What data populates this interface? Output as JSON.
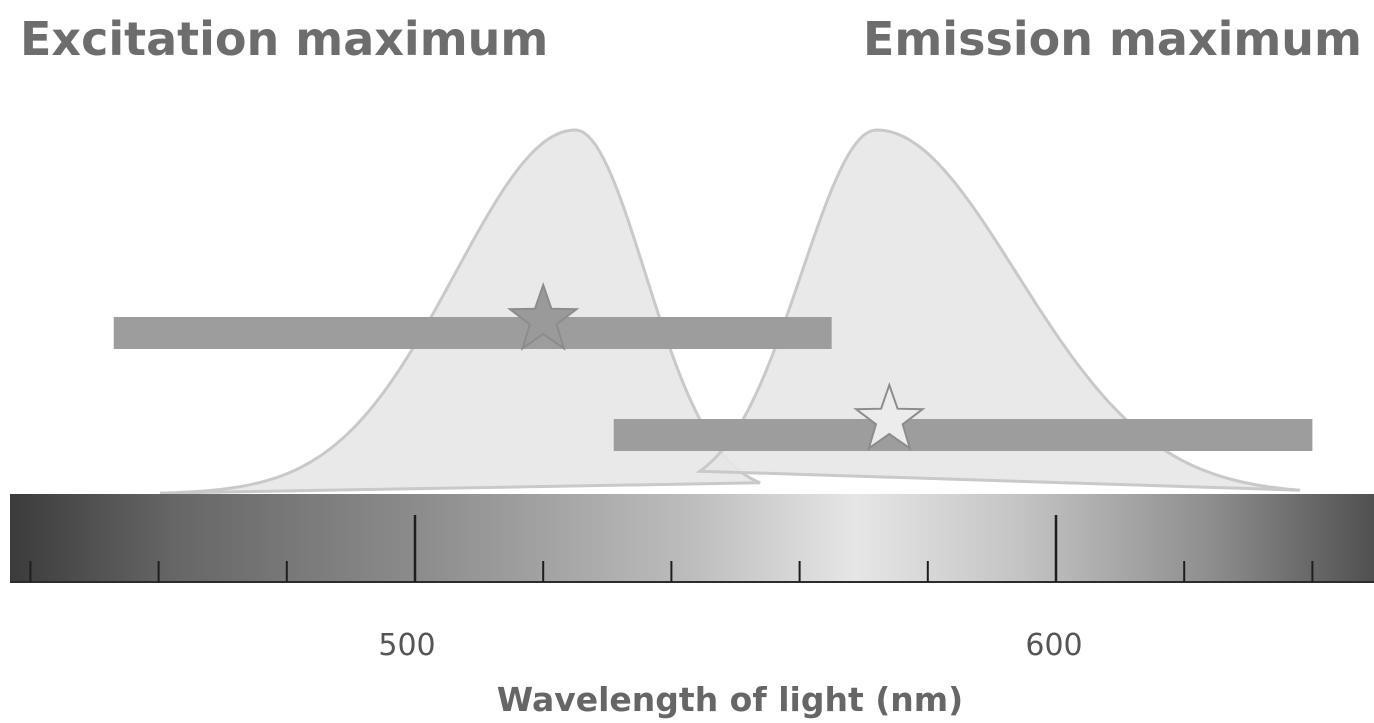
{
  "headings": {
    "excitation": "Excitation maximum",
    "emission": "Emission maximum"
  },
  "axis": {
    "title": "Wavelength of light (nm)",
    "range_nm": [
      437,
      651
    ],
    "major_ticks": [
      500,
      600
    ],
    "minor_step_nm": 20,
    "major_labels": [
      "500",
      "600"
    ]
  },
  "spectra": {
    "excitation_peak_nm": 525,
    "emission_peak_nm": 572,
    "excitation_bar_nm": [
      453,
      565
    ],
    "emission_bar_nm": [
      531,
      640
    ],
    "excitation_star_nm": 520,
    "emission_star_nm": 574
  },
  "colors": {
    "curve_fill": "#e7e7e7",
    "curve_stroke": "#c9c9c9",
    "bar": "#9d9d9d",
    "excitation_star": "#9a9a9a",
    "emission_star": "#ececec",
    "star_stroke": "#8c8c8c",
    "text": "#6d6d6d"
  }
}
